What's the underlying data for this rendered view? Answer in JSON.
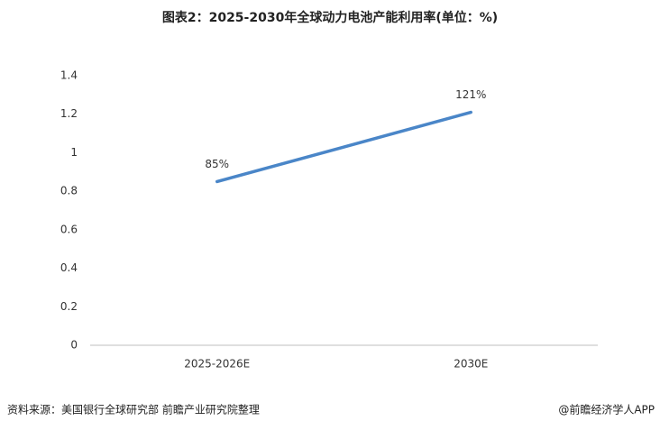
{
  "chart_data": {
    "type": "line",
    "title": "图表2：2025-2030年全球动力电池产能利用率(单位：%)",
    "categories": [
      "2025-2026E",
      "2030E"
    ],
    "series": [
      {
        "name": "产能利用率",
        "color": "#4a86c8",
        "values": [
          0.85,
          1.21
        ],
        "value_labels": [
          "85%",
          "121%"
        ]
      }
    ],
    "ylim": [
      0,
      1.4
    ],
    "yticks": [
      0,
      0.2,
      0.4,
      0.6,
      0.8,
      1,
      1.2,
      1.4
    ],
    "grid": false,
    "legend": false,
    "source": "资料来源：美国银行全球研究部 前瞻产业研究院整理",
    "credit": "@前瞻经济学人APP"
  }
}
